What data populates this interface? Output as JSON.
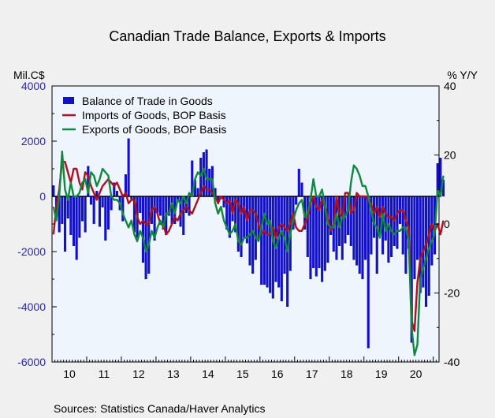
{
  "chart_data": {
    "type": "bar",
    "title": "Canadian Trade Balance, Exports & Imports",
    "left_axis_label": "Mil.C$",
    "right_axis_label": "% Y/Y",
    "source": "Sources:   Statistics Canada/Haver Analytics",
    "left_ylim": [
      -6000,
      4000
    ],
    "right_ylim": [
      -40,
      40
    ],
    "left_ticks": [
      4000,
      2000,
      0,
      -2000,
      -4000,
      -6000
    ],
    "right_ticks": [
      40,
      20,
      0,
      -20,
      -40
    ],
    "year_labels": [
      "10",
      "11",
      "12",
      "13",
      "14",
      "15",
      "16",
      "17",
      "18",
      "19",
      "20"
    ],
    "x_start": "2010-01",
    "legend_position": "top-left",
    "zero_line": true,
    "grid": false,
    "colors": {
      "plot_bg": "#eef5fc",
      "balance": "#1212c4",
      "imports": "#b01020",
      "exports": "#108840",
      "left_tick_text": "#2828b4",
      "text": "#000000"
    },
    "series": [
      {
        "name": "Balance of Trade in Goods",
        "kind": "bar",
        "axis": "left",
        "values": [
          400,
          -500,
          -1300,
          -1000,
          -2000,
          -800,
          -1400,
          -1800,
          -2300,
          -1500,
          -900,
          -1300,
          1100,
          -300,
          -1000,
          200,
          -1100,
          -400,
          -1600,
          -1200,
          -500,
          500,
          200,
          -500,
          -900,
          800,
          2100,
          -100,
          -1300,
          -1500,
          -600,
          -2400,
          -3000,
          -2800,
          -1000,
          -1600,
          -600,
          -700,
          -1200,
          -1400,
          -700,
          -1000,
          -1000,
          -200,
          -1100,
          -1400,
          -600,
          -700,
          1300,
          600,
          300,
          1400,
          1600,
          1700,
          1000,
          1100,
          300,
          -200,
          -100,
          -400,
          -1200,
          -1500,
          -900,
          -1300,
          -2000,
          -2200,
          -1500,
          -1700,
          -2500,
          -2800,
          -2300,
          -1600,
          -3200,
          -3200,
          -3300,
          -3500,
          -3700,
          -3100,
          -3300,
          -3800,
          -2800,
          -4000,
          -2700,
          -1200,
          -300,
          1000,
          500,
          -1200,
          -2200,
          -3000,
          -2600,
          -2900,
          -2600,
          -3100,
          -2700,
          -2400,
          -1400,
          -2000,
          -2300,
          -1800,
          -2300,
          -1700,
          -1400,
          -1800,
          -2300,
          -2500,
          -2800,
          -3000,
          -2300,
          -5500,
          -2100,
          -1500,
          -2800,
          -1400,
          -2100,
          -1600,
          -2400,
          -2200,
          -1800,
          -1900,
          -1000,
          -2100,
          -2800,
          -1900,
          -5300,
          -3000,
          -2300,
          -3500,
          -3300,
          -4000,
          -3600,
          -2500,
          -2100,
          1200,
          1400,
          600
        ]
      },
      {
        "name": "Imports of Goods, BOP Basis",
        "kind": "line",
        "axis": "right",
        "values": [
          -3,
          5,
          10,
          18,
          18,
          15,
          12,
          16,
          16,
          12,
          10,
          15,
          14,
          11,
          9,
          7,
          9,
          11,
          12,
          13,
          12,
          11,
          12,
          10,
          8,
          9,
          6,
          7,
          7,
          2,
          0,
          1,
          0,
          0,
          4,
          5,
          3,
          0,
          0,
          -3,
          -2,
          0,
          2,
          1,
          3,
          4,
          5,
          4,
          3,
          5,
          7,
          9,
          11,
          10,
          10,
          9,
          8,
          6,
          8,
          7,
          6,
          7,
          3,
          7,
          6,
          3,
          5,
          1,
          4,
          4,
          3,
          0,
          -3,
          -2,
          -3,
          -3,
          -1,
          -4,
          -1,
          0,
          -1,
          -2,
          0,
          3,
          -1,
          -2,
          -2,
          0,
          2,
          6,
          8,
          5,
          4,
          7,
          5,
          2,
          -2,
          0,
          8,
          3,
          2,
          9,
          9,
          3,
          4,
          9,
          8,
          8,
          8,
          7,
          6,
          3,
          5,
          2,
          5,
          3,
          2,
          2,
          1,
          3,
          4,
          4,
          1,
          -1,
          -28,
          -31,
          -17,
          -10,
          -8,
          -6,
          -3,
          0,
          -2,
          0,
          -3,
          1
        ]
      },
      {
        "name": "Exports of Goods, BOP Basis",
        "kind": "line",
        "axis": "right",
        "values": [
          5,
          1,
          8,
          21,
          10,
          7,
          12,
          8,
          8,
          9,
          12,
          13,
          9,
          15,
          14,
          11,
          13,
          16,
          15,
          14,
          8,
          7,
          7,
          6,
          3,
          1,
          -1,
          1,
          -3,
          -5,
          -2,
          -4,
          -8,
          -6,
          -2,
          -4,
          -1,
          1,
          -1,
          3,
          3,
          6,
          3,
          7,
          6,
          8,
          6,
          9,
          8,
          13,
          15,
          14,
          16,
          13,
          13,
          13,
          6,
          3,
          5,
          1,
          -1,
          -3,
          -2,
          0,
          -5,
          -6,
          -4,
          -4,
          -3,
          -2,
          -4,
          -5,
          -1,
          3,
          0,
          1,
          -5,
          -7,
          -4,
          -2,
          -4,
          -8,
          -3,
          1,
          4,
          6,
          7,
          2,
          3,
          7,
          13,
          8,
          8,
          10,
          5,
          0,
          -1,
          -1,
          3,
          -1,
          2,
          2,
          4,
          12,
          17,
          16,
          14,
          11,
          11,
          8,
          4,
          0,
          -1,
          -4,
          3,
          -2,
          0,
          -2,
          -3,
          -2,
          -2,
          -1,
          -1,
          -5,
          -30,
          -38,
          -35,
          -16,
          -13,
          -10,
          -7,
          -5,
          -3,
          10,
          8,
          14
        ]
      }
    ]
  }
}
